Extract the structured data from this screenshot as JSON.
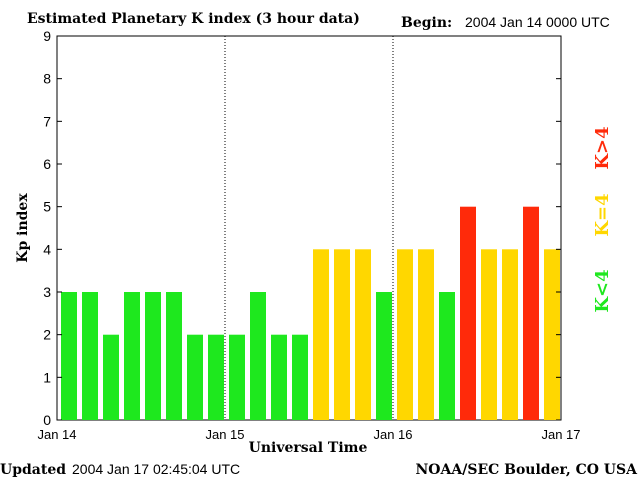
{
  "header": {
    "title": "Estimated Planetary K index (3 hour data)",
    "begin_label": "Begin:",
    "begin_value": "2004 Jan 14 0000 UTC"
  },
  "footer": {
    "updated_label": "Updated",
    "updated_value": "2004 Jan 17 02:45:04 UTC",
    "source": "NOAA/SEC Boulder, CO USA"
  },
  "legend": {
    "low": "K<4",
    "mid": "K=4",
    "high": "K>4"
  },
  "colors": {
    "low": "#1ee81e",
    "mid": "#ffd700",
    "high": "#ff2a0a",
    "axis": "#000000",
    "background": "#ffffff"
  },
  "chart_data": {
    "type": "bar",
    "xlabel": "Universal Time",
    "ylabel": "Kp index",
    "ylim": [
      0,
      9
    ],
    "yticks": [
      0,
      1,
      2,
      3,
      4,
      5,
      6,
      7,
      8,
      9
    ],
    "xtick_labels": [
      "Jan 14",
      "Jan 15",
      "Jan 16",
      "Jan 17"
    ],
    "day_separators": [
      "Jan 15",
      "Jan 16"
    ],
    "bars_per_day": 8,
    "values": [
      3,
      3,
      2,
      3,
      3,
      3,
      2,
      2,
      2,
      3,
      2,
      2,
      4,
      4,
      4,
      3,
      4,
      4,
      3,
      5,
      4,
      4,
      5,
      4
    ],
    "grid": false
  }
}
